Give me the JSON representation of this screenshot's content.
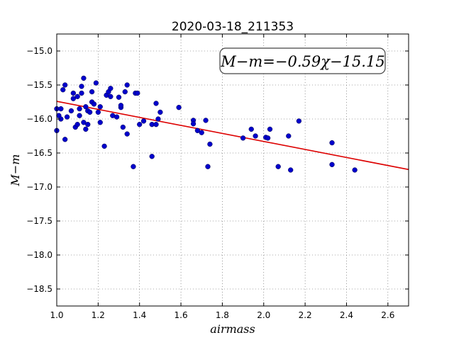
{
  "chart_data": {
    "type": "scatter",
    "title": "2020-03-18_211353",
    "xlabel": "airmass",
    "ylabel": "M−m",
    "xlim": [
      1.0,
      2.7
    ],
    "ylim": [
      -18.75,
      -14.75
    ],
    "y_inverted": true,
    "xticks": [
      1.0,
      1.2,
      1.4,
      1.6,
      1.8,
      2.0,
      2.2,
      2.4,
      2.6
    ],
    "xtick_labels": [
      "1.0",
      "1.2",
      "1.4",
      "1.6",
      "1.8",
      "2.0",
      "2.2",
      "2.4",
      "2.6"
    ],
    "yticks": [
      -15.0,
      -15.5,
      -16.0,
      -16.5,
      -17.0,
      -17.5,
      -18.0,
      -18.5
    ],
    "ytick_labels": [
      "−15.0",
      "−15.5",
      "−16.0",
      "−16.5",
      "−17.0",
      "−17.5",
      "−18.0",
      "−18.5"
    ],
    "grid": true,
    "point_color": "#0000cc",
    "fit_color": "#dd0000",
    "fit": {
      "slope": -0.59,
      "intercept": -15.15,
      "label": "M−m=−0.59χ−15.15"
    },
    "points": [
      {
        "x": 1.0,
        "y": -16.17
      },
      {
        "x": 1.0,
        "y": -15.85
      },
      {
        "x": 1.01,
        "y": -15.95
      },
      {
        "x": 1.02,
        "y": -15.85
      },
      {
        "x": 1.02,
        "y": -16.0
      },
      {
        "x": 1.03,
        "y": -15.57
      },
      {
        "x": 1.04,
        "y": -16.3
      },
      {
        "x": 1.04,
        "y": -15.5
      },
      {
        "x": 1.05,
        "y": -15.97
      },
      {
        "x": 1.07,
        "y": -15.88
      },
      {
        "x": 1.08,
        "y": -15.62
      },
      {
        "x": 1.08,
        "y": -15.7
      },
      {
        "x": 1.09,
        "y": -16.12
      },
      {
        "x": 1.1,
        "y": -16.08
      },
      {
        "x": 1.1,
        "y": -15.67
      },
      {
        "x": 1.11,
        "y": -15.85
      },
      {
        "x": 1.11,
        "y": -15.95
      },
      {
        "x": 1.12,
        "y": -15.52
      },
      {
        "x": 1.12,
        "y": -15.62
      },
      {
        "x": 1.13,
        "y": -15.4
      },
      {
        "x": 1.13,
        "y": -16.05
      },
      {
        "x": 1.14,
        "y": -16.15
      },
      {
        "x": 1.14,
        "y": -15.82
      },
      {
        "x": 1.15,
        "y": -16.08
      },
      {
        "x": 1.15,
        "y": -15.88
      },
      {
        "x": 1.16,
        "y": -15.9
      },
      {
        "x": 1.17,
        "y": -15.6
      },
      {
        "x": 1.17,
        "y": -15.75
      },
      {
        "x": 1.18,
        "y": -15.78
      },
      {
        "x": 1.19,
        "y": -15.47
      },
      {
        "x": 1.2,
        "y": -15.9
      },
      {
        "x": 1.21,
        "y": -16.05
      },
      {
        "x": 1.21,
        "y": -15.82
      },
      {
        "x": 1.23,
        "y": -16.4
      },
      {
        "x": 1.24,
        "y": -15.65
      },
      {
        "x": 1.25,
        "y": -15.6
      },
      {
        "x": 1.26,
        "y": -15.55
      },
      {
        "x": 1.26,
        "y": -15.67
      },
      {
        "x": 1.27,
        "y": -15.95
      },
      {
        "x": 1.29,
        "y": -15.97
      },
      {
        "x": 1.3,
        "y": -15.68
      },
      {
        "x": 1.31,
        "y": -15.83
      },
      {
        "x": 1.31,
        "y": -15.8
      },
      {
        "x": 1.32,
        "y": -16.12
      },
      {
        "x": 1.33,
        "y": -15.6
      },
      {
        "x": 1.34,
        "y": -15.5
      },
      {
        "x": 1.34,
        "y": -16.22
      },
      {
        "x": 1.37,
        "y": -16.7
      },
      {
        "x": 1.38,
        "y": -15.62
      },
      {
        "x": 1.39,
        "y": -15.62
      },
      {
        "x": 1.4,
        "y": -16.08
      },
      {
        "x": 1.42,
        "y": -16.03
      },
      {
        "x": 1.46,
        "y": -16.55
      },
      {
        "x": 1.46,
        "y": -16.08
      },
      {
        "x": 1.48,
        "y": -16.08
      },
      {
        "x": 1.48,
        "y": -15.77
      },
      {
        "x": 1.49,
        "y": -16.0
      },
      {
        "x": 1.5,
        "y": -15.9
      },
      {
        "x": 1.59,
        "y": -15.83
      },
      {
        "x": 1.66,
        "y": -16.02
      },
      {
        "x": 1.66,
        "y": -16.07
      },
      {
        "x": 1.68,
        "y": -16.17
      },
      {
        "x": 1.7,
        "y": -16.2
      },
      {
        "x": 1.72,
        "y": -16.02
      },
      {
        "x": 1.73,
        "y": -16.7
      },
      {
        "x": 1.74,
        "y": -16.37
      },
      {
        "x": 1.9,
        "y": -16.28
      },
      {
        "x": 1.94,
        "y": -16.15
      },
      {
        "x": 1.96,
        "y": -16.25
      },
      {
        "x": 2.01,
        "y": -16.27
      },
      {
        "x": 2.02,
        "y": -16.28
      },
      {
        "x": 2.03,
        "y": -16.15
      },
      {
        "x": 2.07,
        "y": -16.7
      },
      {
        "x": 2.12,
        "y": -16.25
      },
      {
        "x": 2.13,
        "y": -16.75
      },
      {
        "x": 2.17,
        "y": -16.03
      },
      {
        "x": 2.33,
        "y": -16.35
      },
      {
        "x": 2.33,
        "y": -16.67
      },
      {
        "x": 2.44,
        "y": -16.75
      }
    ]
  }
}
